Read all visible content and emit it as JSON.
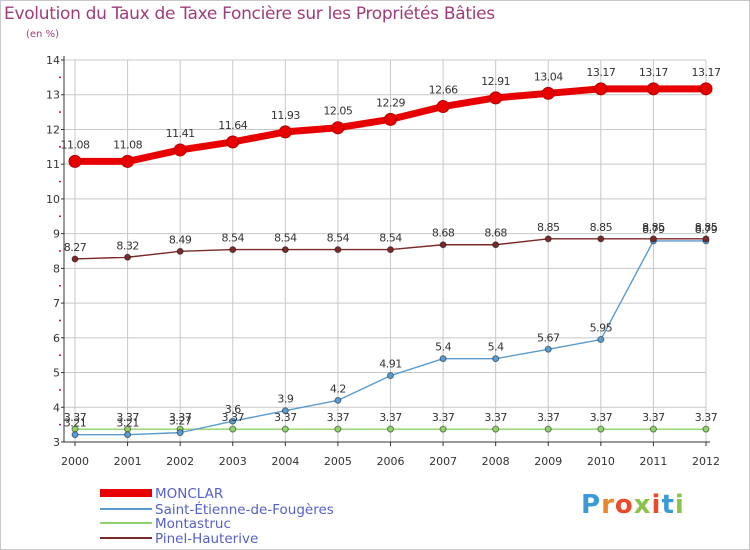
{
  "header": {
    "title": "Evolution du Taux de Taxe Foncière sur les Propriétés Bâties",
    "subtitle": "(en %)"
  },
  "logo": {
    "text": "Proxiti",
    "letter_colors": [
      "#3b9bd8",
      "#e8862a",
      "#e84a2b",
      "#8bc34a",
      "#e84a2b",
      "#3b9bd8",
      "#8bc34a"
    ]
  },
  "colors": {
    "text": "#a03b79",
    "grid": "#c8c8c8",
    "axis": "#333333",
    "axis_tick_marks": "#c0184c"
  },
  "chart_data": {
    "type": "line",
    "x": [
      "2000",
      "2001",
      "2002",
      "2003",
      "2004",
      "2005",
      "2006",
      "2007",
      "2008",
      "2009",
      "2010",
      "2011",
      "2012"
    ],
    "ylim": [
      3,
      14
    ],
    "yticks": [
      3,
      4,
      5,
      6,
      7,
      8,
      9,
      10,
      11,
      12,
      13,
      14
    ],
    "grid": true,
    "legend_position": "bottom-left",
    "series": [
      {
        "name": "MONCLAR",
        "color": "#e80000",
        "emphasis": "thick",
        "values": [
          11.08,
          11.08,
          11.41,
          11.64,
          11.93,
          12.05,
          12.29,
          12.66,
          12.91,
          13.04,
          13.17,
          13.17,
          13.17
        ],
        "labels": [
          "11.08",
          "11.08",
          "11.41",
          "11.64",
          "11.93",
          "12.05",
          "12.29",
          "12.66",
          "12.91",
          "13.04",
          "13.17",
          "13.17",
          "13.17"
        ]
      },
      {
        "name": "Saint-Étienne-de-Fougères",
        "color": "#5a9ccf",
        "emphasis": "thin",
        "values": [
          3.21,
          3.21,
          3.27,
          3.6,
          3.9,
          4.2,
          4.91,
          5.4,
          5.4,
          5.67,
          5.95,
          8.79,
          8.79
        ],
        "labels": [
          "3.21",
          "3.21",
          "3.27",
          "3.6",
          "3.9",
          "4.2",
          "4.91",
          "5.4",
          "5.4",
          "5.67",
          "5.95",
          "8.79",
          "8.79"
        ]
      },
      {
        "name": "Montastruc",
        "color": "#8fd36a",
        "emphasis": "thin",
        "values": [
          3.37,
          3.37,
          3.37,
          3.37,
          3.37,
          3.37,
          3.37,
          3.37,
          3.37,
          3.37,
          3.37,
          3.37,
          3.37
        ],
        "labels": [
          "3.37",
          "3.37",
          "3.37",
          "3.37",
          "3.37",
          "3.37",
          "3.37",
          "3.37",
          "3.37",
          "3.37",
          "3.37",
          "3.37",
          "3.37"
        ]
      },
      {
        "name": "Pinel-Hauterive",
        "color": "#7a2a2a",
        "emphasis": "thin",
        "values": [
          8.27,
          8.32,
          8.49,
          8.54,
          8.54,
          8.54,
          8.54,
          8.68,
          8.68,
          8.85,
          8.85,
          8.85,
          8.85
        ],
        "labels": [
          "8.27",
          "8.32",
          "8.49",
          "8.54",
          "8.54",
          "8.54",
          "8.54",
          "8.68",
          "8.68",
          "8.85",
          "8.85",
          "8.85",
          "8.85"
        ]
      }
    ]
  }
}
